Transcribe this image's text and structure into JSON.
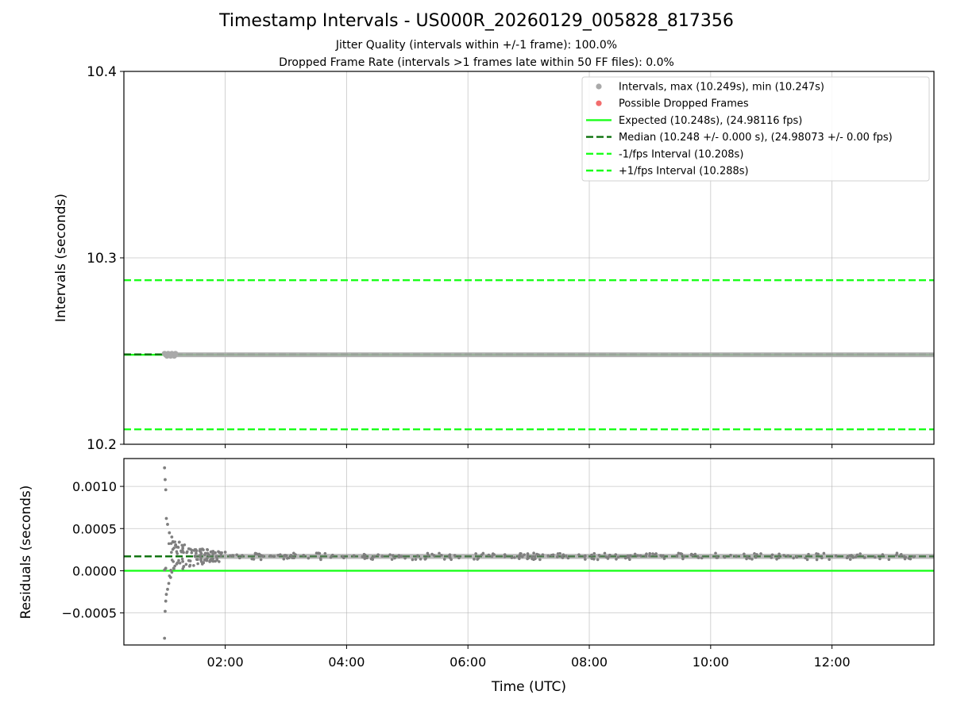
{
  "chart_data": [
    {
      "type": "scatter",
      "panel": "intervals",
      "title": "Timestamp Intervals - US000R_20260129_005828_817356",
      "subtitle_1": "Jitter Quality (intervals within +/-1 frame): 100.0%",
      "subtitle_2": "Dropped Frame Rate (intervals >1 frames late within 50 FF files): 0.0%",
      "ylabel": "Intervals (seconds)",
      "ylim": [
        10.2,
        10.4
      ],
      "xlim_hours": [
        0.33,
        13.68
      ],
      "y_ticks": [
        "10.2",
        "10.3",
        "10.4"
      ],
      "x_tick_hours": [
        2,
        4,
        6,
        8,
        10,
        12
      ],
      "grid": true,
      "legend_placement": "top-right",
      "legend": [
        {
          "label": "Intervals, max (10.249s), min (10.247s)",
          "kind": "marker",
          "color": "#a9a9a9"
        },
        {
          "label": "Possible Dropped Frames",
          "kind": "marker",
          "color": "#f26d6d"
        },
        {
          "label": "Expected (10.248s), (24.98116 fps)",
          "kind": "solid",
          "color": "#1aff1a"
        },
        {
          "label": "Median (10.248 +/- 0.000 s), (24.98073 +/- 0.00 fps)",
          "kind": "dashed",
          "color": "#0a700a"
        },
        {
          "label": "-1/fps Interval (10.208s)",
          "kind": "dashed",
          "color": "#1aff1a"
        },
        {
          "label": "+1/fps Interval (10.288s)",
          "kind": "dashed",
          "color": "#1aff1a"
        }
      ],
      "series": [
        {
          "name": "Intervals, max (10.249s), min (10.247s)",
          "x_start_hours": 1.0,
          "x_end_hours": 13.68,
          "y_min": 10.247,
          "y_max": 10.249
        },
        {
          "name": "Possible Dropped Frames",
          "count": 0
        }
      ],
      "reference_lines": {
        "expected": 10.248,
        "median": 10.2482,
        "minus_1fps": 10.208,
        "plus_1fps": 10.288
      }
    },
    {
      "type": "scatter",
      "panel": "residuals",
      "xlabel": "Time (UTC)",
      "ylabel": "Residuals (seconds)",
      "ylim": [
        -0.00088,
        0.00133
      ],
      "xlim_hours": [
        0.33,
        13.68
      ],
      "y_tick_values": [
        -0.0005,
        0.0,
        0.0005,
        0.001
      ],
      "y_ticks": [
        "−0.0005",
        "0.0000",
        "0.0005",
        "0.0010"
      ],
      "x_ticks": [
        "02:00",
        "04:00",
        "06:00",
        "08:00",
        "10:00",
        "12:00"
      ],
      "x_tick_hours": [
        2,
        4,
        6,
        8,
        10,
        12
      ],
      "grid": true,
      "expected_line": 0.0,
      "median_line": 0.00017,
      "points": [
        [
          1.0,
          0.00122
        ],
        [
          1.01,
          0.00108
        ],
        [
          1.02,
          0.00096
        ],
        [
          1.03,
          0.00062
        ],
        [
          1.05,
          0.00055
        ],
        [
          1.0,
          -0.0008
        ],
        [
          1.01,
          -0.00048
        ],
        [
          1.02,
          -0.00036
        ],
        [
          1.03,
          -0.00028
        ],
        [
          1.05,
          -0.00022
        ],
        [
          1.07,
          -0.00015
        ],
        [
          1.1,
          -8e-05
        ],
        [
          1.0,
          1e-05
        ],
        [
          1.02,
          3e-05
        ],
        [
          1.08,
          0.00045
        ],
        [
          1.12,
          0.0004
        ],
        [
          1.15,
          0.00034
        ],
        [
          1.18,
          0.0003
        ],
        [
          1.22,
          0.00028
        ],
        [
          1.3,
          0.00027
        ],
        [
          1.4,
          0.00026
        ],
        [
          1.5,
          0.00025
        ],
        [
          1.6,
          0.00025
        ],
        [
          1.8,
          0.00023
        ],
        [
          2.0,
          0.00022
        ],
        [
          1.15,
          3e-05
        ],
        [
          1.2,
          8e-05
        ],
        [
          1.3,
          0.00011
        ],
        [
          1.4,
          0.00012
        ],
        [
          1.6,
          0.00013
        ]
      ],
      "band": {
        "x_start_hours": 1.5,
        "x_end_hours": 13.68,
        "y_center": 0.00017,
        "spread": 3e-05
      }
    }
  ]
}
